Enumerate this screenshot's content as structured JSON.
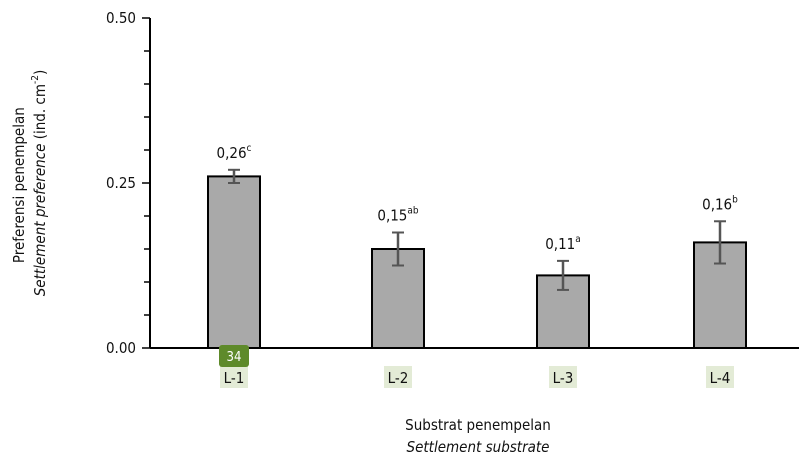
{
  "chart_data": {
    "type": "bar",
    "categories": [
      "L-1",
      "L-2",
      "L-3",
      "L-4"
    ],
    "values": [
      0.26,
      0.15,
      0.11,
      0.16
    ],
    "errors": [
      0.01,
      0.025,
      0.022,
      0.032
    ],
    "data_labels": [
      {
        "value": "0,26",
        "letter": "c"
      },
      {
        "value": "0,15",
        "letter": "ab"
      },
      {
        "value": "0,11",
        "letter": "a"
      },
      {
        "value": "0,16",
        "letter": "b"
      }
    ],
    "yticks": [
      "0.00",
      "0.25",
      "0.50"
    ],
    "ylim": [
      0,
      0.5
    ],
    "ylabel_line1": "Preferensi penempelan",
    "ylabel_line2": "Settlement preference",
    "ylabel_unit": "(ind. cm",
    "ylabel_unit_exp": "-2",
    "ylabel_unit_close": ")",
    "xlabel_line1": "Substrat penempelan",
    "xlabel_line2": "Settlement substrate",
    "bar_color": "#a9a9a9",
    "bar_edge": "#000000",
    "error_color": "#555555",
    "category_highlight": "#e3ebd6"
  },
  "page_badge": {
    "text": "34",
    "color": "#5e8a2a"
  }
}
